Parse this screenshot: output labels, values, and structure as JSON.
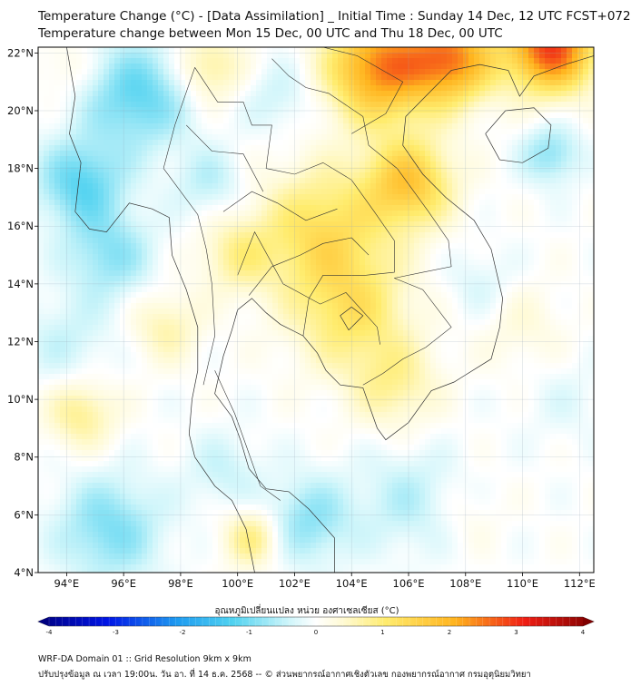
{
  "title_line1": "Temperature Change (°C) - [Data Assimilation] _ Initial Time : Sunday 14 Dec, 12 UTC FCST+072",
  "title_line2": "Temperature change between Mon 15 Dec, 00 UTC and Thu 18 Dec, 00 UTC",
  "colorbar_label": "อุณหภูมิเปลี่ยนแปลง หน่วย องศาเซลเซียส (°C)",
  "footer_line1": "WRF-DA Domain 01 :: Grid Resolution 9km x 9km",
  "footer_line2": "ปรับปรุงข้อมูล ณ เวลา 19:00น. วัน อา. ที่ 14 ธ.ค. 2568 -- © ส่วนพยากรณ์อากาศเชิงตัวเลข กองพยากรณ์อากาศ กรมอุตุนิยมวิทยา",
  "map": {
    "lon_range": [
      93,
      112.5
    ],
    "lat_range": [
      4,
      22.2
    ],
    "lon_ticks": [
      {
        "value": 94,
        "label": "94°E"
      },
      {
        "value": 96,
        "label": "96°E"
      },
      {
        "value": 98,
        "label": "98°E"
      },
      {
        "value": 100,
        "label": "100°E"
      },
      {
        "value": 102,
        "label": "102°E"
      },
      {
        "value": 104,
        "label": "104°E"
      },
      {
        "value": 106,
        "label": "106°E"
      },
      {
        "value": 108,
        "label": "108°E"
      },
      {
        "value": 110,
        "label": "110°E"
      },
      {
        "value": 112,
        "label": "112°E"
      }
    ],
    "lat_ticks": [
      {
        "value": 22,
        "label": "22°N"
      },
      {
        "value": 20,
        "label": "20°N"
      },
      {
        "value": 18,
        "label": "18°N"
      },
      {
        "value": 16,
        "label": "16°N"
      },
      {
        "value": 14,
        "label": "14°N"
      },
      {
        "value": 12,
        "label": "12°N"
      },
      {
        "value": 10,
        "label": "10°N"
      },
      {
        "value": 8,
        "label": "8°N"
      },
      {
        "value": 6,
        "label": "6°N"
      },
      {
        "value": 4,
        "label": "4°N"
      }
    ]
  },
  "colorbar": {
    "min": -4,
    "max": 4,
    "ticks": [
      {
        "value": -4,
        "label": "-4"
      },
      {
        "value": -3,
        "label": "-3"
      },
      {
        "value": -2,
        "label": "-2"
      },
      {
        "value": -1,
        "label": "-1"
      },
      {
        "value": 0,
        "label": "0"
      },
      {
        "value": 1,
        "label": "1"
      },
      {
        "value": 2,
        "label": "2"
      },
      {
        "value": 3,
        "label": "3"
      },
      {
        "value": 4,
        "label": "4"
      }
    ],
    "stops": [
      {
        "value": -4,
        "color": "#000080"
      },
      {
        "value": -3,
        "color": "#0015e6"
      },
      {
        "value": -2,
        "color": "#1e9bf0"
      },
      {
        "value": -1.2,
        "color": "#50d2f0"
      },
      {
        "value": -0.4,
        "color": "#cdf5fa"
      },
      {
        "value": 0,
        "color": "#ffffff"
      },
      {
        "value": 0.4,
        "color": "#fffad2"
      },
      {
        "value": 1,
        "color": "#ffec6e"
      },
      {
        "value": 2,
        "color": "#ffb41e"
      },
      {
        "value": 3,
        "color": "#f01e14"
      },
      {
        "value": 4,
        "color": "#800000"
      }
    ]
  },
  "field": {
    "background": 0.0,
    "blobs": [
      {
        "lon": 96.5,
        "lat": 20.5,
        "value": -1.1,
        "radius": 1.8
      },
      {
        "lon": 94.5,
        "lat": 17.5,
        "value": -1.1,
        "radius": 1.5
      },
      {
        "lon": 95.5,
        "lat": 15.0,
        "value": -0.8,
        "radius": 1.5
      },
      {
        "lon": 94.0,
        "lat": 12.0,
        "value": -0.4,
        "radius": 1.6
      },
      {
        "lon": 99.0,
        "lat": 17.5,
        "value": -0.5,
        "radius": 1.2
      },
      {
        "lon": 101.5,
        "lat": 20.5,
        "value": -0.4,
        "radius": 1.3
      },
      {
        "lon": 95.5,
        "lat": 5.5,
        "value": -0.9,
        "radius": 1.8
      },
      {
        "lon": 102.5,
        "lat": 5.8,
        "value": -0.8,
        "radius": 1.5
      },
      {
        "lon": 99.5,
        "lat": 7.5,
        "value": -0.4,
        "radius": 1.3
      },
      {
        "lon": 106.0,
        "lat": 6.5,
        "value": -0.5,
        "radius": 1.8
      },
      {
        "lon": 111.0,
        "lat": 18.5,
        "value": -0.8,
        "radius": 1.0
      },
      {
        "lon": 108.5,
        "lat": 14.0,
        "value": -0.3,
        "radius": 1.2
      },
      {
        "lon": 111.5,
        "lat": 10.0,
        "value": -0.2,
        "radius": 1.5
      },
      {
        "lon": 103.0,
        "lat": 15.8,
        "value": 1.2,
        "radius": 2.2
      },
      {
        "lon": 104.0,
        "lat": 13.0,
        "value": 1.0,
        "radius": 2.0
      },
      {
        "lon": 105.5,
        "lat": 10.5,
        "value": 0.7,
        "radius": 1.5
      },
      {
        "lon": 100.0,
        "lat": 15.0,
        "value": 0.7,
        "radius": 1.3
      },
      {
        "lon": 106.0,
        "lat": 17.5,
        "value": 1.6,
        "radius": 1.5
      },
      {
        "lon": 105.0,
        "lat": 21.5,
        "value": 2.3,
        "radius": 1.8
      },
      {
        "lon": 107.5,
        "lat": 21.8,
        "value": 2.2,
        "radius": 1.5
      },
      {
        "lon": 111.0,
        "lat": 22.2,
        "value": 2.8,
        "radius": 1.5
      },
      {
        "lon": 99.0,
        "lat": 21.5,
        "value": 0.8,
        "radius": 1.2
      },
      {
        "lon": 94.0,
        "lat": 21.5,
        "value": 0.3,
        "radius": 1.0
      },
      {
        "lon": 97.5,
        "lat": 12.5,
        "value": 0.6,
        "radius": 1.2
      },
      {
        "lon": 94.5,
        "lat": 9.5,
        "value": 0.8,
        "radius": 1.2
      },
      {
        "lon": 100.5,
        "lat": 5.2,
        "value": 0.9,
        "radius": 1.0
      },
      {
        "lon": 110.0,
        "lat": 12.5,
        "value": 0.3,
        "radius": 1.5
      },
      {
        "lon": 108.0,
        "lat": 6.0,
        "value": 0.2,
        "radius": 1.2
      }
    ]
  }
}
